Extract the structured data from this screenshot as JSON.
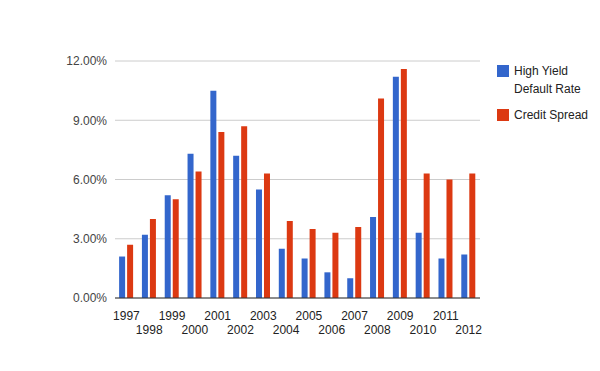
{
  "chart_data": {
    "type": "bar",
    "categories": [
      "1997",
      "1998",
      "1999",
      "2000",
      "2001",
      "2002",
      "2003",
      "2004",
      "2005",
      "2006",
      "2007",
      "2008",
      "2009",
      "2010",
      "2011",
      "2012"
    ],
    "series": [
      {
        "name": "High Yield Default Rate",
        "color": "#3366cc",
        "values": [
          2.1,
          3.2,
          5.2,
          7.3,
          10.5,
          7.2,
          5.5,
          2.5,
          2.0,
          1.3,
          1.0,
          4.1,
          11.2,
          3.3,
          2.0,
          2.2
        ]
      },
      {
        "name": "Credit Spread",
        "color": "#dc3912",
        "values": [
          2.7,
          4.0,
          5.0,
          6.4,
          8.4,
          8.7,
          6.3,
          3.9,
          3.5,
          3.3,
          3.6,
          10.1,
          11.6,
          6.3,
          6.0,
          6.3
        ]
      }
    ],
    "ylim": [
      0,
      12
    ],
    "yticks": [
      {
        "value": 0,
        "label": "0.00%"
      },
      {
        "value": 3,
        "label": "3.00%"
      },
      {
        "value": 6,
        "label": "6.00%"
      },
      {
        "value": 9,
        "label": "9.00%"
      },
      {
        "value": 12,
        "label": "12.00%"
      }
    ],
    "grid": true,
    "legend": "right"
  }
}
